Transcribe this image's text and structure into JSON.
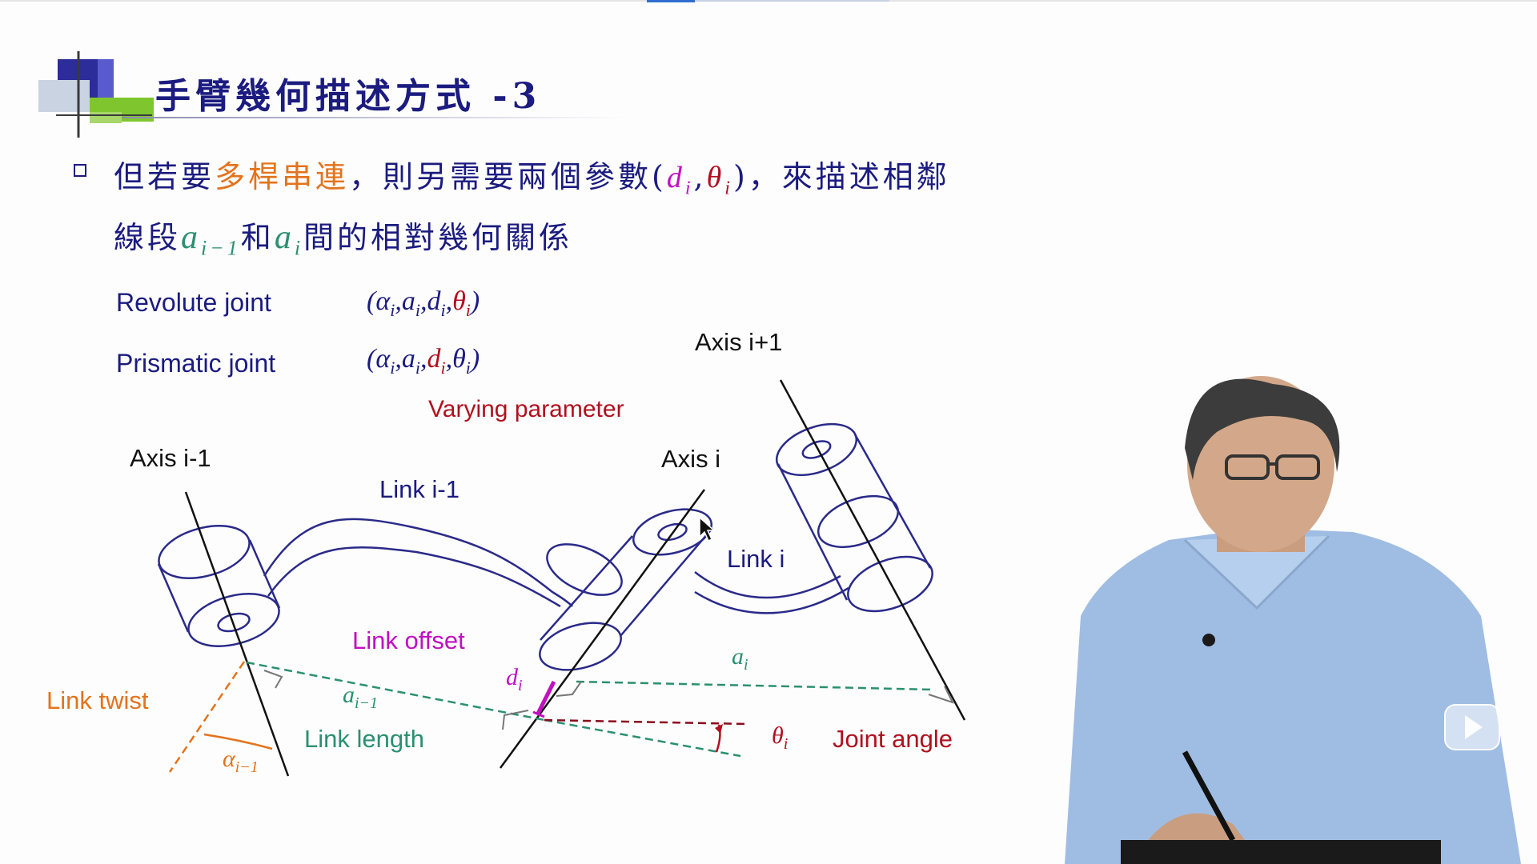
{
  "slide": {
    "title": "手臂幾何描述方式 -3",
    "bullet": {
      "line1_before": "但若要",
      "line1_highlight": "多桿串連",
      "line1_mid": "，則另需要兩個參數(",
      "param_d": "d",
      "param_sub_i": "i",
      "param_theta": "θ",
      "line1_after": ")，來描述相鄰",
      "line2_before": "線段",
      "a_sym": "a",
      "sub_im1": "i−1",
      "line2_and": "和",
      "line2_after": "間的相對幾何關係"
    },
    "revolute": {
      "label": "Revolute joint",
      "open": "(",
      "alpha": "α",
      "a": "a",
      "d": "d",
      "theta": "θ",
      "sub": "i",
      "comma": ",",
      "close": ")"
    },
    "prismatic": {
      "label": "Prismatic joint"
    },
    "varying_parameter": "Varying parameter"
  },
  "diagram": {
    "axis_im1": "Axis i-1",
    "axis_i": "Axis i",
    "axis_ip1": "Axis i+1",
    "link_im1": "Link i-1",
    "link_i": "Link i",
    "link_offset": "Link offset",
    "link_twist": "Link twist",
    "link_length": "Link length",
    "joint_angle": "Joint angle",
    "sym_alpha": "α",
    "sym_a": "a",
    "sym_d": "d",
    "sym_theta": "θ",
    "sub_i": "i",
    "sub_im1": "i−1"
  },
  "colors": {
    "title_navy": "#1b1b80",
    "highlight_orange": "#e4731c",
    "magenta": "#c010c0",
    "dark_red": "#b0101f",
    "teal_green": "#2a9070",
    "drawing_navy": "#2a2a8a"
  },
  "player": {
    "icon": "play-icon"
  }
}
